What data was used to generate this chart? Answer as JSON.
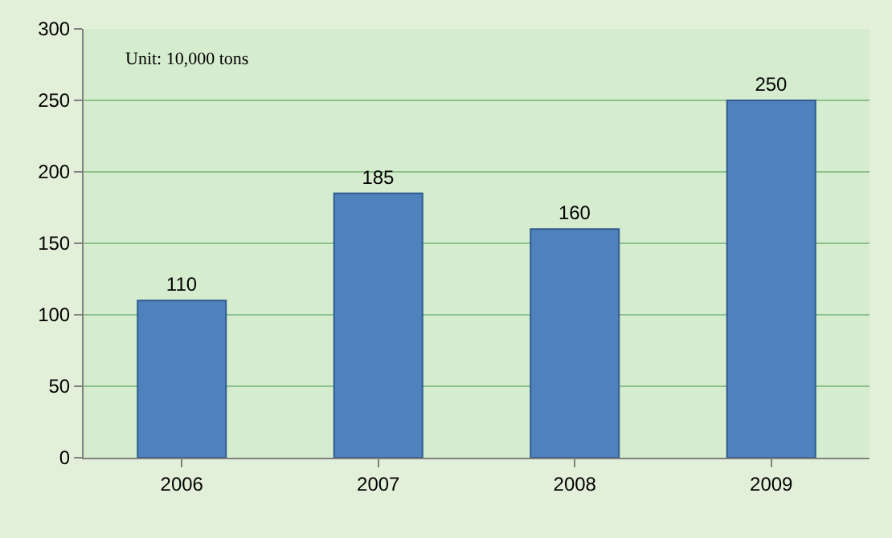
{
  "chart_data": {
    "type": "bar",
    "categories": [
      "2006",
      "2007",
      "2008",
      "2009"
    ],
    "values": [
      110,
      185,
      160,
      250
    ],
    "color": "#4f81bd",
    "ylim": [
      0,
      300
    ],
    "yticks": [
      0,
      50,
      100,
      150,
      200,
      250,
      300
    ],
    "grid": "y",
    "data_labels": true,
    "legend": false,
    "annotations": [
      "Unit: 10,000 tons"
    ]
  }
}
